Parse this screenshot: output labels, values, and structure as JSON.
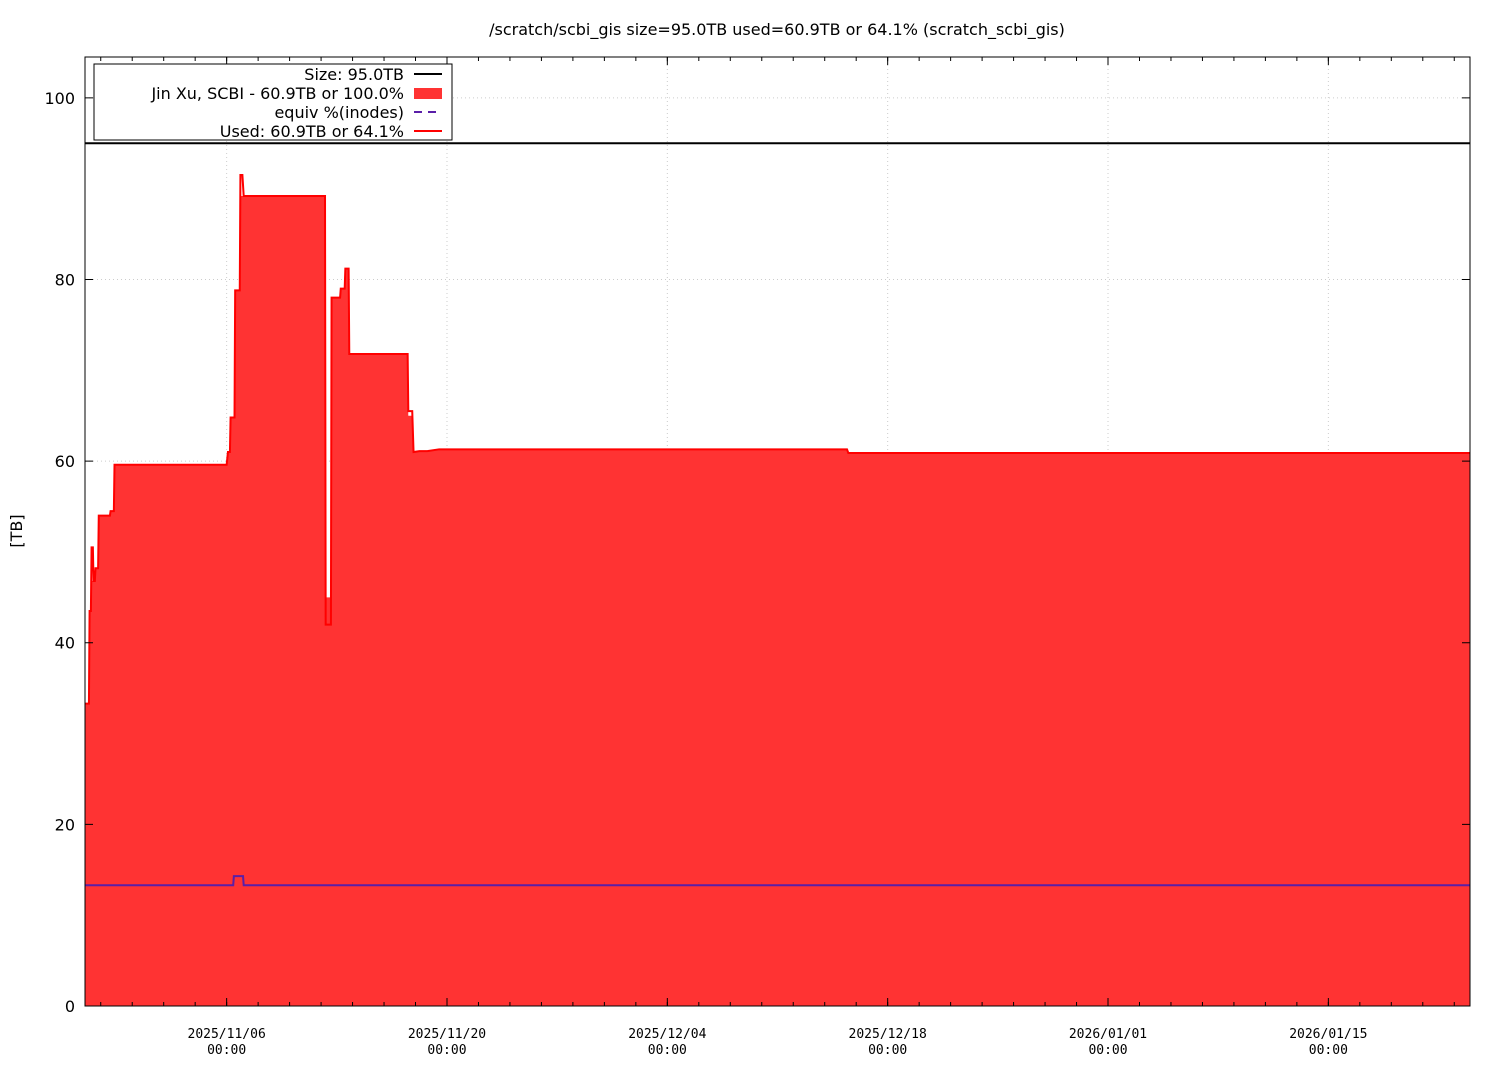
{
  "chart_data": {
    "type": "area",
    "title": "/scratch/scbi_gis size=95.0TB used=60.9TB or 64.1% (scratch_scbi_gis)",
    "ylabel": "[TB]",
    "xlabel": "",
    "ylim": [
      0,
      104.5
    ],
    "xlim": [
      "2025/10/28 00:00",
      "2026/01/24 00:00"
    ],
    "grid": true,
    "legend_position": "top-left",
    "y_ticks": [
      0,
      20,
      40,
      60,
      80,
      100
    ],
    "x_ticks": [
      {
        "date": "2025/11/06 00:00",
        "line1": "2025/11/06",
        "line2": "00:00"
      },
      {
        "date": "2025/11/20 00:00",
        "line1": "2025/11/20",
        "line2": "00:00"
      },
      {
        "date": "2025/12/04 00:00",
        "line1": "2025/12/04",
        "line2": "00:00"
      },
      {
        "date": "2025/12/18 00:00",
        "line1": "2025/12/18",
        "line2": "00:00"
      },
      {
        "date": "2026/01/01 00:00",
        "line1": "2026/01/01",
        "line2": "00:00"
      },
      {
        "date": "2026/01/15 00:00",
        "line1": "2026/01/15",
        "line2": "00:00"
      }
    ],
    "legend": [
      {
        "label": "Size: 95.0TB",
        "color": "#000000",
        "style": "line"
      },
      {
        "label": "Jin Xu, SCBI - 60.9TB or 100.0%",
        "color": "#ff3333",
        "style": "fill"
      },
      {
        "label": "equiv %(inodes)",
        "color": "#5a1fa8",
        "style": "dash"
      },
      {
        "label": "Used: 60.9TB or 64.1%",
        "color": "#ff0000",
        "style": "line"
      }
    ],
    "size_line": 95.0,
    "series": [
      {
        "name": "Jin Xu, SCBI - 60.9TB or 100.0%",
        "kind": "area",
        "color": "#ff3333",
        "x": [
          "2025/10/28 00:00",
          "2025/10/28 06:00",
          "2025/10/28 07:00",
          "2025/10/28 09:00",
          "2025/10/28 10:00",
          "2025/10/28 15:00",
          "2025/10/28 16:00",
          "2025/10/28 20:00",
          "2025/10/28 21:00",
          "2025/10/29 14:00",
          "2025/10/29 15:00",
          "2025/10/29 20:00",
          "2025/10/29 21:00",
          "2025/10/30 12:00",
          "2025/10/30 13:00",
          "2025/10/30 19:00",
          "2025/10/30 20:00",
          "2025/10/31 04:00",
          "2025/10/31 05:00",
          "2025/11/06 00:00",
          "2025/11/06 02:00",
          "2025/11/06 05:00",
          "2025/11/06 06:00",
          "2025/11/06 12:00",
          "2025/11/06 13:00",
          "2025/11/06 20:00",
          "2025/11/06 21:00",
          "2025/11/07 00:00",
          "2025/11/07 02:00",
          "2025/11/12 06:00",
          "2025/11/12 07:00",
          "2025/11/12 15:00",
          "2025/11/12 16:00",
          "2025/11/13 05:00",
          "2025/11/13 06:00",
          "2025/11/13 12:00",
          "2025/11/13 13:00",
          "2025/11/13 18:00",
          "2025/11/13 19:00",
          "2025/11/17 12:00",
          "2025/11/17 13:00",
          "2025/11/17 19:00",
          "2025/11/17 21:00",
          "2025/11/18 06:00",
          "2025/11/18 18:00",
          "2025/11/19 12:00",
          "2025/12/15 10:00",
          "2025/12/15 12:00",
          "2026/01/24 00:00"
        ],
        "y": [
          33.3,
          33.3,
          43.5,
          43.5,
          46.8,
          46.8,
          48.2,
          48.2,
          54.0,
          54.0,
          54.5,
          54.5,
          59.6,
          59.6,
          59.6,
          59.6,
          59.6,
          59.6,
          59.6,
          59.6,
          61.0,
          61.0,
          64.8,
          64.8,
          78.8,
          78.8,
          89.2,
          89.2,
          89.2,
          89.2,
          45.0,
          45.0,
          78.0,
          78.0,
          79.0,
          79.0,
          81.2,
          81.2,
          71.8,
          71.8,
          65.0,
          65.0,
          61.0,
          61.1,
          61.1,
          61.3,
          61.3,
          60.9,
          60.9
        ]
      },
      {
        "name": "Used: 60.9TB or 64.1%",
        "kind": "line",
        "color": "#ff0000",
        "x": [
          "2025/10/28 00:00",
          "2025/10/28 06:00",
          "2025/10/28 07:00",
          "2025/10/28 09:00",
          "2025/10/28 10:00",
          "2025/10/28 12:00",
          "2025/10/28 13:00",
          "2025/10/28 15:00",
          "2025/10/28 16:00",
          "2025/10/28 20:00",
          "2025/10/28 21:00",
          "2025/10/29 14:00",
          "2025/10/29 15:00",
          "2025/10/29 20:00",
          "2025/10/29 21:00",
          "2025/10/30 12:00",
          "2025/10/30 13:00",
          "2025/10/30 19:00",
          "2025/10/30 20:00",
          "2025/11/06 00:00",
          "2025/11/06 02:00",
          "2025/11/06 05:00",
          "2025/11/06 06:00",
          "2025/11/06 12:00",
          "2025/11/06 13:00",
          "2025/11/06 20:00",
          "2025/11/06 21:00",
          "2025/11/07 00:00",
          "2025/11/07 02:00",
          "2025/11/07 04:00",
          "2025/11/07 06:00",
          "2025/11/12 06:00",
          "2025/11/12 07:00",
          "2025/11/12 15:00",
          "2025/11/12 16:00",
          "2025/11/13 05:00",
          "2025/11/13 06:00",
          "2025/11/13 12:00",
          "2025/11/13 13:00",
          "2025/11/13 18:00",
          "2025/11/13 19:00",
          "2025/11/17 12:00",
          "2025/11/17 13:00",
          "2025/11/17 19:00",
          "2025/11/17 21:00",
          "2025/11/18 06:00",
          "2025/11/18 18:00",
          "2025/11/19 12:00",
          "2025/12/15 10:00",
          "2025/12/15 12:00",
          "2026/01/24 00:00"
        ],
        "y": [
          33.3,
          33.3,
          43.5,
          43.5,
          50.5,
          50.5,
          46.8,
          46.8,
          48.2,
          48.2,
          54.0,
          54.0,
          54.5,
          54.5,
          59.6,
          59.6,
          59.6,
          59.6,
          59.6,
          59.6,
          61.0,
          61.0,
          64.8,
          64.8,
          78.8,
          78.8,
          91.5,
          91.5,
          89.2,
          89.2,
          89.2,
          89.2,
          42.0,
          42.0,
          78.0,
          78.0,
          79.0,
          79.0,
          81.2,
          81.2,
          71.8,
          71.8,
          65.5,
          65.5,
          61.0,
          61.1,
          61.1,
          61.3,
          61.3,
          60.9,
          60.9
        ]
      },
      {
        "name": "equiv %(inodes)",
        "kind": "line",
        "color": "#5a1fa8",
        "x": [
          "2025/10/28 00:00",
          "2025/11/06 10:00",
          "2025/11/06 11:00",
          "2025/11/07 01:00",
          "2025/11/07 02:00",
          "2026/01/24 00:00"
        ],
        "y": [
          13.3,
          13.3,
          14.3,
          14.3,
          13.3,
          13.3
        ]
      }
    ]
  }
}
